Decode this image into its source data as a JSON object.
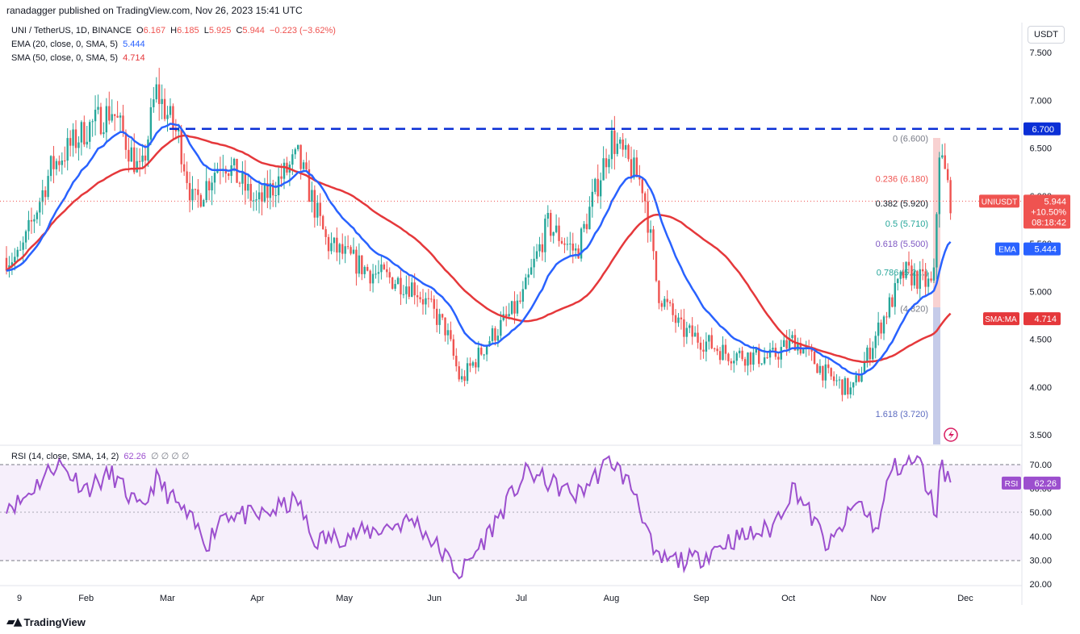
{
  "header": {
    "published": "ranadagger published on TradingView.com, Nov 26, 2023 15:41 UTC"
  },
  "legend": {
    "symbol": "UNI / TetherUS, 1D, BINANCE",
    "open_label": "O",
    "open": "6.167",
    "high_label": "H",
    "high": "6.185",
    "low_label": "L",
    "low": "5.925",
    "close_label": "C",
    "close": "5.944",
    "change": "−0.223 (−3.62%)",
    "ema_label": "EMA (20, close, 0, SMA, 5)",
    "ema_value": "5.444",
    "sma_label": "SMA (50, close, 0, SMA, 5)",
    "sma_value": "4.714",
    "rsi_label": "RSI (14, close, SMA, 14, 2)",
    "rsi_value": "62.26",
    "rsi_extra": "∅ ∅ ∅ ∅"
  },
  "currency_button": "USDT",
  "footer_logo": "TradingView",
  "colors": {
    "up": "#26a69a",
    "down": "#ef5350",
    "ema": "#2962ff",
    "sma": "#e5383b",
    "rsi": "#9c4fce",
    "resistance": "#0a2fd6"
  },
  "chart_data": {
    "type": "candlestick",
    "price_axis": {
      "min": 3.4,
      "max": 7.7,
      "ticks": [
        "7.500",
        "7.000",
        "6.500",
        "6.000",
        "5.500",
        "5.000",
        "4.500",
        "4.000",
        "3.500"
      ]
    },
    "time_axis": [
      "9",
      "Feb",
      "Mar",
      "Apr",
      "May",
      "Jun",
      "Jul",
      "Aug",
      "Sep",
      "Oct",
      "Nov",
      "Dec"
    ],
    "close_path": [
      [
        "2023-01-09",
        5.35
      ],
      [
        "2023-01-20",
        6.3
      ],
      [
        "2023-02-01",
        6.7
      ],
      [
        "2023-02-10",
        6.9
      ],
      [
        "2023-02-20",
        6.2
      ],
      [
        "2023-02-25",
        7.1
      ],
      [
        "2023-03-05",
        6.6
      ],
      [
        "2023-03-10",
        5.9
      ],
      [
        "2023-03-20",
        6.4
      ],
      [
        "2023-04-01",
        5.9
      ],
      [
        "2023-04-15",
        6.4
      ],
      [
        "2023-04-25",
        5.5
      ],
      [
        "2023-05-10",
        5.2
      ],
      [
        "2023-05-25",
        5.05
      ],
      [
        "2023-06-05",
        4.6
      ],
      [
        "2023-06-10",
        4.05
      ],
      [
        "2023-06-20",
        4.5
      ],
      [
        "2023-07-01",
        4.9
      ],
      [
        "2023-07-10",
        5.7
      ],
      [
        "2023-07-20",
        5.4
      ],
      [
        "2023-08-01",
        6.6
      ],
      [
        "2023-08-12",
        6.1
      ],
      [
        "2023-08-17",
        5.0
      ],
      [
        "2023-08-25",
        4.6
      ],
      [
        "2023-09-10",
        4.35
      ],
      [
        "2023-09-25",
        4.3
      ],
      [
        "2023-10-03",
        4.5
      ],
      [
        "2023-10-15",
        4.1
      ],
      [
        "2023-10-23",
        3.95
      ],
      [
        "2023-11-01",
        4.6
      ],
      [
        "2023-11-10",
        5.2
      ],
      [
        "2023-11-20",
        5.05
      ],
      [
        "2023-11-22",
        6.5
      ],
      [
        "2023-11-26",
        5.944
      ]
    ],
    "ema20_last": 5.444,
    "sma50_last": 4.714,
    "horizontal_line": {
      "label": "6.700",
      "value": 6.7
    },
    "fib_levels": [
      {
        "label": "0 (6.600)",
        "value": 6.6
      },
      {
        "label": "0.236 (6.180)",
        "value": 6.18
      },
      {
        "label": "0.382 (5.920)",
        "value": 5.92
      },
      {
        "label": "0.5 (5.710)",
        "value": 5.71
      },
      {
        "label": "0.618 (5.500)",
        "value": 5.5
      },
      {
        "label": "0.786 (5.2…)",
        "value": 5.2
      },
      {
        "label": "(4.820)",
        "value": 4.82
      },
      {
        "label": "1.618 (3.720)",
        "value": 3.72
      }
    ],
    "price_tags": [
      {
        "label": "UNIUSDT",
        "value": "5.944",
        "change": "+10.50%",
        "timer": "08:18:42"
      },
      {
        "label": "EMA",
        "value": "5.444"
      },
      {
        "label": "SMA:MA",
        "value": "4.714"
      }
    ],
    "rsi_axis": {
      "min": 18,
      "max": 77,
      "ticks": [
        "70.00",
        "60.00",
        "50.00",
        "40.00",
        "30.00",
        "20.00"
      ],
      "upper": 70,
      "lower": 30
    },
    "rsi_path": [
      [
        "2023-01-09",
        54
      ],
      [
        "2023-01-22",
        71
      ],
      [
        "2023-02-01",
        60
      ],
      [
        "2023-02-10",
        66
      ],
      [
        "2023-02-20",
        50
      ],
      [
        "2023-02-25",
        64
      ],
      [
        "2023-03-10",
        45
      ],
      [
        "2023-03-15",
        37
      ],
      [
        "2023-03-20",
        50
      ],
      [
        "2023-04-01",
        48
      ],
      [
        "2023-04-15",
        55
      ],
      [
        "2023-04-20",
        38
      ],
      [
        "2023-05-10",
        42
      ],
      [
        "2023-05-25",
        47
      ],
      [
        "2023-06-10",
        24
      ],
      [
        "2023-06-20",
        42
      ],
      [
        "2023-06-28",
        58
      ],
      [
        "2023-07-03",
        67
      ],
      [
        "2023-07-20",
        57
      ],
      [
        "2023-08-01",
        72
      ],
      [
        "2023-08-10",
        57
      ],
      [
        "2023-08-16",
        30
      ],
      [
        "2023-08-30",
        30
      ],
      [
        "2023-09-10",
        38
      ],
      [
        "2023-09-25",
        43
      ],
      [
        "2023-10-03",
        61
      ],
      [
        "2023-10-15",
        35
      ],
      [
        "2023-10-25",
        55
      ],
      [
        "2023-11-01",
        42
      ],
      [
        "2023-11-05",
        68
      ],
      [
        "2023-11-15",
        72
      ],
      [
        "2023-11-21",
        48
      ],
      [
        "2023-11-22",
        71
      ],
      [
        "2023-11-26",
        62.26
      ]
    ]
  }
}
